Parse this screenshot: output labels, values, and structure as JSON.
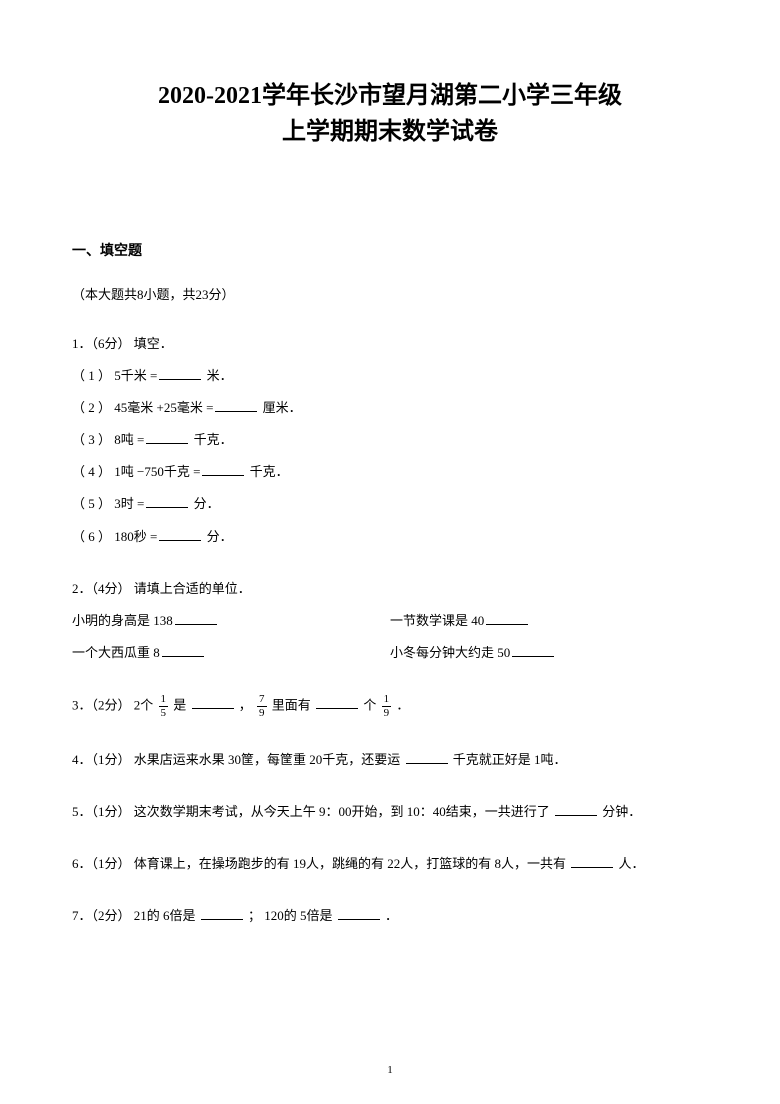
{
  "title_line1": "2020-2021学年长沙市望月湖第二小学三年级",
  "title_line2": "上学期期末数学试卷",
  "section1": {
    "header": "一、填空题",
    "note": "（本大题共8小题，共23分）"
  },
  "q1": {
    "head": "1．（6分） 填空．",
    "s1_a": "（ 1 ）  5千米 =",
    "s1_b": " 米．",
    "s2_a": "（ 2 ）  45毫米 +25毫米 =",
    "s2_b": " 厘米．",
    "s3_a": "（ 3 ）  8吨 =",
    "s3_b": " 千克．",
    "s4_a": "（ 4 ）  1吨 −750千克 =",
    "s4_b": " 千克．",
    "s5_a": "（ 5 ）  3时 =",
    "s5_b": " 分．",
    "s6_a": "（ 6 ）  180秒 =",
    "s6_b": " 分．"
  },
  "q2": {
    "head": "2．（4分） 请填上合适的单位．",
    "c1": "小明的身高是 138",
    "c2": "一节数学课是 40",
    "c3": "一个大西瓜重 8",
    "c4": "小冬每分钟大约走 50"
  },
  "q3": {
    "a": "3．（2分） 2个",
    "b": "是",
    "c": "，",
    "d": "里面有",
    "e": "个",
    "f": "．",
    "f1n": "1",
    "f1d": "5",
    "f2n": "7",
    "f2d": "9",
    "f3n": "1",
    "f3d": "9"
  },
  "q4": {
    "a": "4．（1分） 水果店运来水果 30筐，每筐重 20千克，还要运",
    "b": "千克就正好是 1吨．"
  },
  "q5": {
    "a": "5．（1分） 这次数学期末考试，从今天上午 9：00开始，到 10：40结束，一共进行了",
    "b": "分钟．"
  },
  "q6": {
    "a": "6．（1分） 体育课上，在操场跑步的有 19人，跳绳的有 22人，打篮球的有 8人，一共有",
    "b": "人．"
  },
  "q7": {
    "a": "7．（2分）  21的 6倍是",
    "b": "； 120的 5倍是",
    "c": "．"
  },
  "page_number": "1",
  "colors": {
    "text": "#000000",
    "background": "#ffffff"
  }
}
